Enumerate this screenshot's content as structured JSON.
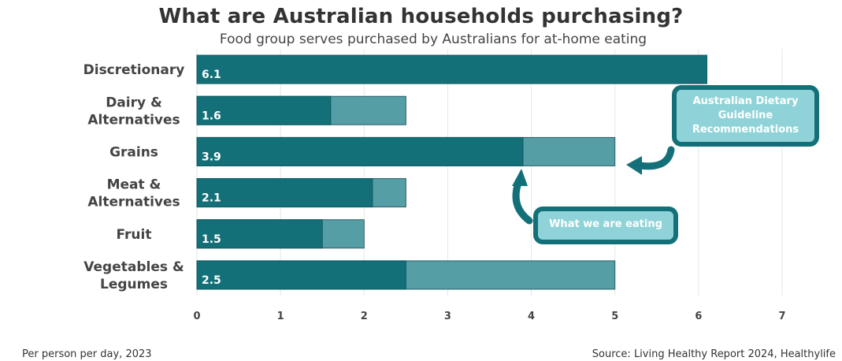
{
  "chart_data": {
    "type": "bar",
    "orientation": "horizontal",
    "title": "What are Australian households purchasing?",
    "subtitle": "Food group serves purchased by Australians for at-home eating",
    "categories": [
      "Discretionary",
      "Dairy & Alternatives",
      "Grains",
      "Meat & Alternatives",
      "Fruit",
      "Vegetables & Legumes"
    ],
    "category_lines": [
      [
        "Discretionary"
      ],
      [
        "Dairy &",
        "Alternatives"
      ],
      [
        "Grains"
      ],
      [
        "Meat &",
        "Alternatives"
      ],
      [
        "Fruit"
      ],
      [
        "Vegetables &",
        "Legumes"
      ]
    ],
    "series": [
      {
        "name": "What we are eating",
        "values": [
          6.1,
          1.6,
          3.9,
          2.1,
          1.5,
          2.5
        ],
        "color": "#137078"
      },
      {
        "name": "Australian Dietary Guideline Recommendations",
        "values": [
          null,
          2.5,
          5,
          2.5,
          2,
          5
        ],
        "color": "#559ea6"
      }
    ],
    "value_labels": [
      "6.1",
      "1.6",
      "3.9",
      "2.1",
      "1.5",
      "2.5"
    ],
    "xlim": [
      0,
      7
    ],
    "xticks": [
      0,
      1,
      2,
      3,
      4,
      5,
      6,
      7
    ],
    "grid": true
  },
  "callouts": {
    "guideline": "Australian Dietary Guideline Recommendations",
    "eating": "What we are eating"
  },
  "footer": {
    "left": "Per person per day, 2023",
    "right": "Source: Living Healthy Report 2024, Healthylife"
  }
}
